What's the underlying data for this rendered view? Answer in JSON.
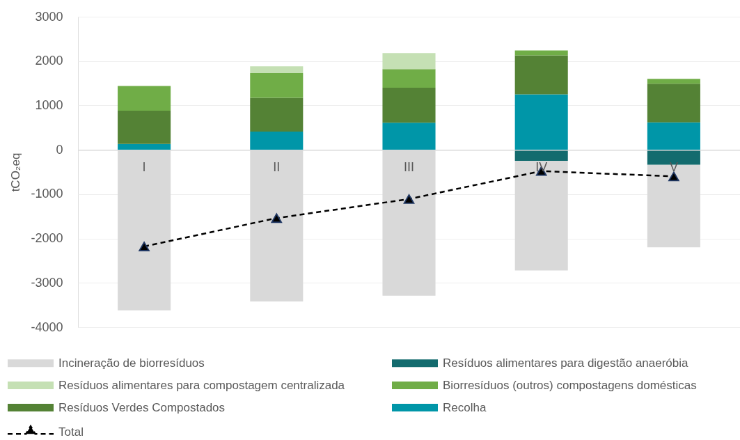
{
  "chart_data": {
    "type": "bar",
    "stacked": true,
    "categories": [
      "I",
      "II",
      "III",
      "IV",
      "V"
    ],
    "ylabel": "tCO₂eq",
    "ylim": [
      -4000,
      3000
    ],
    "yticks": [
      -4000,
      -3000,
      -2000,
      -1000,
      0,
      1000,
      2000,
      3000
    ],
    "grid": "y",
    "legend": "bottom",
    "marker": "triangle",
    "line_style": "dashed",
    "series": [
      {
        "name": "Recolha",
        "color": "#0096a8",
        "values": [
          130,
          410,
          610,
          1250,
          620
        ]
      },
      {
        "name": "Resíduos Verdes Compostados",
        "color": "#548235",
        "values": [
          750,
          760,
          790,
          880,
          870
        ]
      },
      {
        "name": "Biorresíduos (outros) compostagens domésticas",
        "color": "#70ad47",
        "values": [
          560,
          560,
          420,
          110,
          110
        ]
      },
      {
        "name": "Resíduos alimentares para compostagem centralizada",
        "color": "#c5e0b4",
        "values": [
          null,
          150,
          360,
          null,
          null
        ]
      },
      {
        "name": "Resíduos alimentares para digestão anaeróbia",
        "color": "#136b6e",
        "values": [
          null,
          null,
          null,
          -250,
          -340
        ]
      },
      {
        "name": "Incineração de biorresíduos",
        "color": "#d9d9d9",
        "values": [
          -3620,
          -3420,
          -3290,
          -2470,
          -1860
        ]
      },
      {
        "name": "Total",
        "type": "line",
        "color": "#000000",
        "values": [
          -2180,
          -1540,
          -1110,
          -480,
          -600
        ]
      }
    ]
  }
}
